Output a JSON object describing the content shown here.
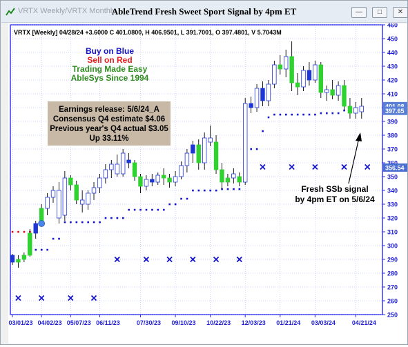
{
  "window": {
    "app_title": "VRTX Weekly/VRTX Monthly",
    "chart_title": "AbleTrend Fresh Sweet Sport Signal by 4pm ET",
    "icons": [
      "app-logo-icon",
      "minimize-icon",
      "restore-icon",
      "close-icon"
    ]
  },
  "header_info": "VRTX [Weekly] 04/28/24 +3.6000 C 401.0800, H 406.9501, L 391.7001, O 397.4801, V 5.7043M",
  "legend_lines": [
    {
      "text": "Buy on Blue",
      "color": "#1515c8"
    },
    {
      "text": "Sell on Red",
      "color": "#e41b1b"
    },
    {
      "text": "Trading Made Easy",
      "color": "#2e8b1f"
    },
    {
      "text": "AbleSys Since 1994",
      "color": "#2e8b1f"
    }
  ],
  "earnings_box": {
    "lines": [
      "Earnings release: 5/6/24_A",
      "Consensus Q4 estimate $4.06",
      "Previous year's Q4 actual $3.05",
      "Up 33.11%"
    ],
    "background": "#c7b9a6"
  },
  "annotation": {
    "lines": [
      "Fresh SSb signal",
      "by 4pm ET on 5/6/24"
    ]
  },
  "price_tags": [
    {
      "value": "401.08",
      "color": "#5a7fd6"
    },
    {
      "value": "397.65",
      "color": "#5a7fd6"
    },
    {
      "value": "356.54",
      "color": "#4a6fd0"
    }
  ],
  "colors": {
    "up": "#2fd22f",
    "down": "#1f36d6",
    "neutral": "#ffffff",
    "wick": "#000000",
    "stop_blue": "#1414cc",
    "stop_red": "#dd1111",
    "marker": "#1414cc",
    "grid": "#9ea8ff"
  },
  "chart_data": {
    "type": "candlestick",
    "title": "AbleTrend Fresh Sweet Sport Signal by 4pm ET",
    "ylim": [
      250,
      460
    ],
    "y_ticks": [
      250,
      260,
      270,
      280,
      290,
      300,
      310,
      320,
      330,
      340,
      350,
      360,
      370,
      380,
      390,
      400,
      410,
      420,
      430,
      440,
      450,
      460
    ],
    "grid": true,
    "x_tick_labels": [
      {
        "index": 0,
        "label": "03/01/23"
      },
      {
        "index": 5,
        "label": "04/02/23"
      },
      {
        "index": 10,
        "label": "05/07/23"
      },
      {
        "index": 15,
        "label": "06/11/23"
      },
      {
        "index": 22,
        "label": "07/30/23"
      },
      {
        "index": 28,
        "label": "09/10/23"
      },
      {
        "index": 34,
        "label": "10/22/23"
      },
      {
        "index": 40,
        "label": "12/03/23"
      },
      {
        "index": 46,
        "label": "01/21/24"
      },
      {
        "index": 52,
        "label": "03/03/24"
      },
      {
        "index": 59,
        "label": "04/21/24"
      }
    ],
    "candles": [
      {
        "o": 293,
        "h": 294,
        "l": 286,
        "c": 288,
        "color": "down"
      },
      {
        "o": 288,
        "h": 293,
        "l": 284,
        "c": 290,
        "color": "up"
      },
      {
        "o": 290,
        "h": 295,
        "l": 288,
        "c": 293,
        "color": "up"
      },
      {
        "o": 293,
        "h": 312,
        "l": 292,
        "c": 309,
        "color": "up"
      },
      {
        "o": 309,
        "h": 318,
        "l": 305,
        "c": 316,
        "color": "down"
      },
      {
        "o": 316,
        "h": 330,
        "l": 314,
        "c": 327,
        "color": "up"
      },
      {
        "o": 327,
        "h": 338,
        "l": 322,
        "c": 335,
        "color": "neutral"
      },
      {
        "o": 335,
        "h": 343,
        "l": 331,
        "c": 340,
        "color": "neutral"
      },
      {
        "o": 340,
        "h": 346,
        "l": 316,
        "c": 320,
        "color": "neutral"
      },
      {
        "o": 322,
        "h": 354,
        "l": 318,
        "c": 349,
        "color": "neutral"
      },
      {
        "o": 349,
        "h": 351,
        "l": 340,
        "c": 344,
        "color": "up"
      },
      {
        "o": 344,
        "h": 347,
        "l": 330,
        "c": 333,
        "color": "up"
      },
      {
        "o": 333,
        "h": 340,
        "l": 324,
        "c": 330,
        "color": "neutral"
      },
      {
        "o": 330,
        "h": 340,
        "l": 326,
        "c": 338,
        "color": "neutral"
      },
      {
        "o": 338,
        "h": 346,
        "l": 333,
        "c": 342,
        "color": "neutral"
      },
      {
        "o": 342,
        "h": 352,
        "l": 338,
        "c": 349,
        "color": "neutral"
      },
      {
        "o": 349,
        "h": 359,
        "l": 345,
        "c": 355,
        "color": "neutral"
      },
      {
        "o": 355,
        "h": 362,
        "l": 349,
        "c": 359,
        "color": "neutral"
      },
      {
        "o": 359,
        "h": 366,
        "l": 350,
        "c": 352,
        "color": "neutral"
      },
      {
        "o": 352,
        "h": 370,
        "l": 350,
        "c": 367,
        "color": "neutral"
      },
      {
        "o": 362,
        "h": 367,
        "l": 356,
        "c": 360,
        "color": "down"
      },
      {
        "o": 360,
        "h": 362,
        "l": 347,
        "c": 350,
        "color": "up"
      },
      {
        "o": 350,
        "h": 352,
        "l": 338,
        "c": 343,
        "color": "up"
      },
      {
        "o": 343,
        "h": 351,
        "l": 340,
        "c": 348,
        "color": "neutral"
      },
      {
        "o": 348,
        "h": 352,
        "l": 343,
        "c": 346,
        "color": "down"
      },
      {
        "o": 346,
        "h": 353,
        "l": 344,
        "c": 351,
        "color": "neutral"
      },
      {
        "o": 351,
        "h": 356,
        "l": 344,
        "c": 349,
        "color": "up"
      },
      {
        "o": 349,
        "h": 352,
        "l": 342,
        "c": 346,
        "color": "up"
      },
      {
        "o": 346,
        "h": 354,
        "l": 343,
        "c": 350,
        "color": "neutral"
      },
      {
        "o": 350,
        "h": 361,
        "l": 348,
        "c": 358,
        "color": "neutral"
      },
      {
        "o": 358,
        "h": 370,
        "l": 353,
        "c": 367,
        "color": "neutral"
      },
      {
        "o": 367,
        "h": 376,
        "l": 360,
        "c": 373,
        "color": "down"
      },
      {
        "o": 373,
        "h": 377,
        "l": 355,
        "c": 360,
        "color": "up"
      },
      {
        "o": 360,
        "h": 382,
        "l": 355,
        "c": 378,
        "color": "neutral"
      },
      {
        "o": 378,
        "h": 387,
        "l": 372,
        "c": 375,
        "color": "neutral"
      },
      {
        "o": 375,
        "h": 380,
        "l": 352,
        "c": 355,
        "color": "up"
      },
      {
        "o": 355,
        "h": 360,
        "l": 341,
        "c": 346,
        "color": "up"
      },
      {
        "o": 346,
        "h": 352,
        "l": 343,
        "c": 349,
        "color": "up"
      },
      {
        "o": 349,
        "h": 356,
        "l": 345,
        "c": 352,
        "color": "neutral"
      },
      {
        "o": 350,
        "h": 353,
        "l": 343,
        "c": 346,
        "color": "up"
      },
      {
        "o": 346,
        "h": 407,
        "l": 344,
        "c": 403,
        "color": "neutral"
      },
      {
        "o": 403,
        "h": 408,
        "l": 396,
        "c": 400,
        "color": "down"
      },
      {
        "o": 400,
        "h": 417,
        "l": 397,
        "c": 414,
        "color": "neutral"
      },
      {
        "o": 414,
        "h": 419,
        "l": 401,
        "c": 405,
        "color": "down"
      },
      {
        "o": 405,
        "h": 420,
        "l": 401,
        "c": 417,
        "color": "neutral"
      },
      {
        "o": 417,
        "h": 434,
        "l": 414,
        "c": 431,
        "color": "neutral"
      },
      {
        "o": 431,
        "h": 438,
        "l": 424,
        "c": 428,
        "color": "up"
      },
      {
        "o": 428,
        "h": 442,
        "l": 422,
        "c": 437,
        "color": "neutral"
      },
      {
        "o": 437,
        "h": 448,
        "l": 412,
        "c": 418,
        "color": "up"
      },
      {
        "o": 418,
        "h": 425,
        "l": 409,
        "c": 415,
        "color": "up"
      },
      {
        "o": 415,
        "h": 430,
        "l": 412,
        "c": 427,
        "color": "neutral"
      },
      {
        "o": 427,
        "h": 433,
        "l": 416,
        "c": 420,
        "color": "down"
      },
      {
        "o": 420,
        "h": 434,
        "l": 418,
        "c": 431,
        "color": "neutral"
      },
      {
        "o": 431,
        "h": 433,
        "l": 407,
        "c": 411,
        "color": "up"
      },
      {
        "o": 411,
        "h": 416,
        "l": 405,
        "c": 413,
        "color": "neutral"
      },
      {
        "o": 413,
        "h": 420,
        "l": 406,
        "c": 409,
        "color": "up"
      },
      {
        "o": 409,
        "h": 419,
        "l": 405,
        "c": 416,
        "color": "neutral"
      },
      {
        "o": 416,
        "h": 420,
        "l": 398,
        "c": 401,
        "color": "up"
      },
      {
        "o": 401,
        "h": 407,
        "l": 392,
        "c": 396,
        "color": "up"
      },
      {
        "o": 396,
        "h": 404,
        "l": 392,
        "c": 400,
        "color": "neutral"
      },
      {
        "o": 397,
        "h": 407,
        "l": 392,
        "c": 401,
        "color": "neutral"
      }
    ],
    "stops": [
      {
        "from": 0,
        "to": 3,
        "value": 310,
        "color": "red"
      },
      {
        "from": 4,
        "to": 6,
        "value": 297,
        "color": "blue"
      },
      {
        "from": 7,
        "to": 8,
        "value": 305,
        "color": "blue"
      },
      {
        "from": 9,
        "to": 15,
        "value": 317,
        "color": "blue"
      },
      {
        "from": 16,
        "to": 19,
        "value": 320,
        "color": "blue"
      },
      {
        "from": 20,
        "to": 26,
        "value": 326,
        "color": "blue"
      },
      {
        "from": 27,
        "to": 28,
        "value": 330,
        "color": "blue"
      },
      {
        "from": 29,
        "to": 30,
        "value": 334,
        "color": "blue"
      },
      {
        "from": 31,
        "to": 35,
        "value": 340,
        "color": "blue"
      },
      {
        "from": 36,
        "to": 39,
        "value": 341,
        "color": "blue"
      },
      {
        "from": 40,
        "to": 40,
        "value": 360,
        "color": "blue"
      },
      {
        "from": 41,
        "to": 42,
        "value": 370,
        "color": "blue"
      },
      {
        "from": 43,
        "to": 43,
        "value": 383,
        "color": "blue"
      },
      {
        "from": 44,
        "to": 44,
        "value": 393,
        "color": "blue"
      },
      {
        "from": 45,
        "to": 52,
        "value": 395,
        "color": "blue"
      },
      {
        "from": 53,
        "to": 56,
        "value": 396,
        "color": "blue"
      },
      {
        "from": 57,
        "to": 60,
        "value": 398,
        "color": "blue"
      }
    ],
    "x_markers": [
      {
        "index": 1,
        "value": 262
      },
      {
        "index": 5,
        "value": 262
      },
      {
        "index": 10,
        "value": 262
      },
      {
        "index": 14,
        "value": 262
      },
      {
        "index": 18,
        "value": 290
      },
      {
        "index": 23,
        "value": 290
      },
      {
        "index": 27,
        "value": 290
      },
      {
        "index": 31,
        "value": 290
      },
      {
        "index": 35,
        "value": 290
      },
      {
        "index": 39,
        "value": 290
      },
      {
        "index": 43,
        "value": 357
      },
      {
        "index": 48,
        "value": 357
      },
      {
        "index": 52,
        "value": 357
      },
      {
        "index": 57,
        "value": 357
      },
      {
        "index": 61,
        "value": 357
      }
    ],
    "circle_marker": {
      "index": 5,
      "value": 316
    }
  }
}
